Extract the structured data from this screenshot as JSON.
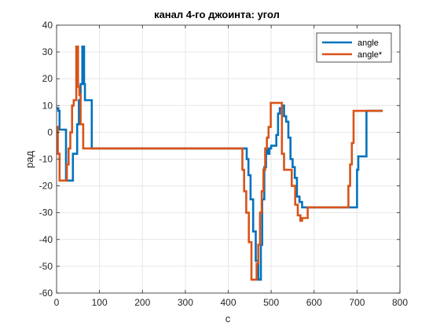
{
  "chart_data": {
    "type": "line",
    "title": "канал 4-го джоинта: угол",
    "xlabel": "с",
    "ylabel": "рад",
    "xlim": [
      0,
      800
    ],
    "ylim": [
      -60,
      40
    ],
    "xticks": [
      "0",
      "100",
      "200",
      "300",
      "400",
      "500",
      "600",
      "700",
      "800"
    ],
    "yticks": [
      "-60",
      "-50",
      "-40",
      "-30",
      "-20",
      "-10",
      "0",
      "10",
      "20",
      "30",
      "40"
    ],
    "grid": true,
    "legend_position": "top-right",
    "series": [
      {
        "name": "angle",
        "color": "#0072BD",
        "x": [
          0,
          4,
          4,
          7,
          7,
          10,
          10,
          17,
          17,
          22,
          22,
          30,
          30,
          38,
          38,
          42,
          42,
          48,
          48,
          52,
          52,
          56,
          56,
          60,
          60,
          64,
          64,
          66,
          66,
          70,
          70,
          82,
          82,
          85,
          85,
          440,
          440,
          443,
          443,
          447,
          447,
          452,
          452,
          458,
          458,
          464,
          464,
          470,
          470,
          476,
          476,
          479,
          479,
          484,
          484,
          488,
          488,
          492,
          492,
          496,
          496,
          500,
          500,
          506,
          506,
          512,
          512,
          516,
          516,
          520,
          520,
          525,
          525,
          530,
          530,
          535,
          535,
          540,
          540,
          545,
          545,
          550,
          550,
          555,
          555,
          560,
          560,
          566,
          566,
          572,
          572,
          578,
          578,
          584,
          584,
          590,
          590,
          600,
          600,
          695,
          695,
          700,
          700,
          703,
          703,
          710,
          710,
          722,
          722,
          760
        ],
        "y": [
          9,
          9,
          8,
          8,
          1,
          1,
          1,
          1,
          1,
          1,
          -18,
          -18,
          -18,
          -18,
          -8,
          -8,
          -8,
          -8,
          3,
          3,
          12,
          12,
          18,
          18,
          32,
          32,
          18,
          18,
          12,
          12,
          12,
          12,
          -6,
          -6,
          -6,
          -6,
          -6,
          -6,
          -10,
          -10,
          -16,
          -16,
          -25,
          -25,
          -37,
          -37,
          -48,
          -48,
          -55,
          -55,
          -42,
          -42,
          -25,
          -25,
          -13,
          -13,
          -6,
          -6,
          -8,
          -8,
          -6,
          -6,
          -5,
          -5,
          -5,
          -5,
          -1,
          -1,
          7,
          7,
          9,
          9,
          10,
          10,
          6,
          6,
          4,
          4,
          -2,
          -2,
          -10,
          -10,
          -13,
          -13,
          -17,
          -17,
          -24,
          -24,
          -26,
          -26,
          -28,
          -28,
          -28,
          -28,
          -28,
          -28,
          -28,
          -28,
          -28,
          -28,
          -28,
          -28,
          -14,
          -14,
          -9,
          -9,
          -9,
          -9,
          8,
          8
        ],
        "name_shown": true
      },
      {
        "name": "angle*",
        "color": "#D95319",
        "x": [
          0,
          3,
          3,
          7,
          7,
          12,
          12,
          24,
          24,
          28,
          28,
          32,
          32,
          36,
          36,
          40,
          40,
          46,
          46,
          50,
          50,
          53,
          53,
          56,
          56,
          62,
          62,
          68,
          68,
          430,
          430,
          433,
          433,
          437,
          437,
          442,
          442,
          448,
          448,
          454,
          454,
          460,
          460,
          466,
          466,
          470,
          470,
          474,
          474,
          478,
          478,
          482,
          482,
          486,
          486,
          490,
          490,
          494,
          494,
          499,
          499,
          503,
          503,
          508,
          508,
          525,
          525,
          530,
          530,
          540,
          540,
          548,
          548,
          556,
          556,
          562,
          562,
          568,
          568,
          572,
          572,
          576,
          576,
          585,
          585,
          598,
          598,
          625,
          625,
          680,
          680,
          684,
          684,
          688,
          688,
          692,
          692,
          700,
          700,
          760
        ],
        "y": [
          2,
          2,
          -8,
          -8,
          -18,
          -18,
          -18,
          -18,
          -12,
          -12,
          -6,
          -6,
          0,
          0,
          10,
          10,
          12,
          12,
          32,
          32,
          17,
          17,
          14,
          14,
          3,
          3,
          -6,
          -6,
          -6,
          -6,
          -6,
          -6,
          -14,
          -14,
          -22,
          -22,
          -30,
          -30,
          -41,
          -41,
          -55,
          -55,
          -55,
          -55,
          -49,
          -49,
          -42,
          -42,
          -30,
          -30,
          -22,
          -22,
          -14,
          -14,
          -6,
          -6,
          -2,
          -2,
          2,
          2,
          11,
          11,
          11,
          11,
          11,
          11,
          -8,
          -8,
          -14,
          -14,
          -14,
          -14,
          -20,
          -20,
          -27,
          -27,
          -31,
          -31,
          -33,
          -33,
          -32,
          -32,
          -32,
          -32,
          -28,
          -28,
          -28,
          -28,
          -28,
          -28,
          -20,
          -20,
          -12,
          -12,
          -4,
          -4,
          8,
          8,
          8,
          8
        ],
        "name_shown": true
      }
    ]
  }
}
